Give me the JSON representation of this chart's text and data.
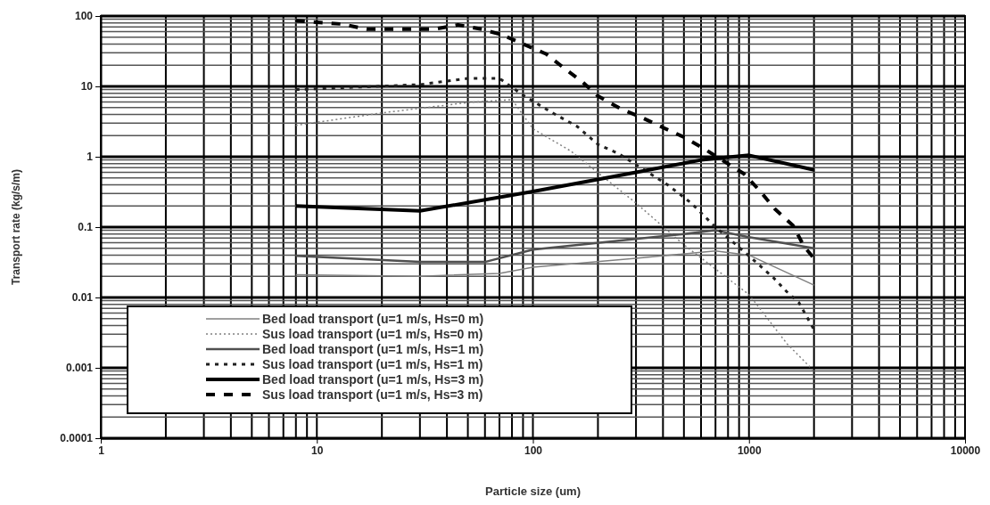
{
  "chart_data": {
    "type": "line",
    "xlabel": "Particle size (um)",
    "ylabel": "Transport rate (kg/s/m)",
    "log": "xy",
    "grid": true,
    "legend": "bottom left",
    "xlim": [
      1,
      10000
    ],
    "xticks": [
      1,
      10,
      100,
      1000,
      10000
    ],
    "ylim": [
      0.0001,
      100
    ],
    "yticks": [
      0.0001,
      0.001,
      0.01,
      0.1,
      1,
      10,
      100
    ],
    "series": [
      {
        "name": "Bed load transport (u=1 m/s, Hs=0 m)",
        "color": "#808080",
        "line_style": "solid",
        "x": [
          8,
          30,
          70,
          100,
          300,
          700,
          1000,
          2000
        ],
        "values": [
          0.021,
          0.02,
          0.022,
          0.027,
          0.036,
          0.046,
          0.04,
          0.015
        ]
      },
      {
        "name": "Sus load transport (u=1 m/s, Hs=0 m)",
        "color": "#808080",
        "line_style": "dotted",
        "x": [
          8,
          20,
          50,
          80,
          100,
          150,
          300,
          500,
          1000,
          1500,
          2000
        ],
        "values": [
          2.8,
          4.2,
          5.9,
          6.5,
          2.5,
          1.2,
          0.22,
          0.056,
          0.011,
          0.0022,
          0.0009
        ]
      },
      {
        "name": "Bed load transport (u=1 m/s, Hs=1 m)",
        "color": "#505050",
        "line_style": "solid",
        "x": [
          8,
          30,
          60,
          100,
          300,
          500,
          700,
          1000,
          2000
        ],
        "values": [
          0.039,
          0.032,
          0.032,
          0.048,
          0.068,
          0.08,
          0.09,
          0.072,
          0.05
        ]
      },
      {
        "name": "Sus load transport (u=1 m/s, Hs=1 m)",
        "color": "#202020",
        "line_style": "dotted",
        "x": [
          8,
          30,
          50,
          70,
          90,
          120,
          160,
          200,
          250,
          420,
          540,
          700,
          1000,
          1300,
          1500,
          1700,
          2000
        ],
        "values": [
          9,
          10.6,
          13,
          13,
          7.5,
          4.4,
          2.7,
          1.5,
          1.1,
          0.4,
          0.22,
          0.1,
          0.039,
          0.019,
          0.012,
          0.0085,
          0.0035
        ]
      },
      {
        "name": "Bed load transport (u=1 m/s, Hs=3 m)",
        "color": "#000000",
        "line_style": "solid",
        "x": [
          8,
          30,
          100,
          300,
          600,
          1000,
          2000
        ],
        "values": [
          0.2,
          0.17,
          0.32,
          0.6,
          0.9,
          1.05,
          0.65
        ]
      },
      {
        "name": "Sus load transport (u=1 m/s, Hs=3 m)",
        "color": "#000000",
        "line_style": "dashed",
        "x": [
          8,
          13,
          17,
          35,
          45,
          58,
          72,
          90,
          115,
          140,
          170,
          200,
          255,
          320,
          400,
          500,
          620,
          950,
          1130,
          1320,
          1600,
          1800,
          2000
        ],
        "values": [
          86,
          77,
          65,
          65,
          75,
          65,
          54,
          40,
          29,
          18,
          11.5,
          7.3,
          4.8,
          3.6,
          2.6,
          1.9,
          1.3,
          0.57,
          0.32,
          0.18,
          0.105,
          0.053,
          0.036
        ]
      }
    ]
  }
}
